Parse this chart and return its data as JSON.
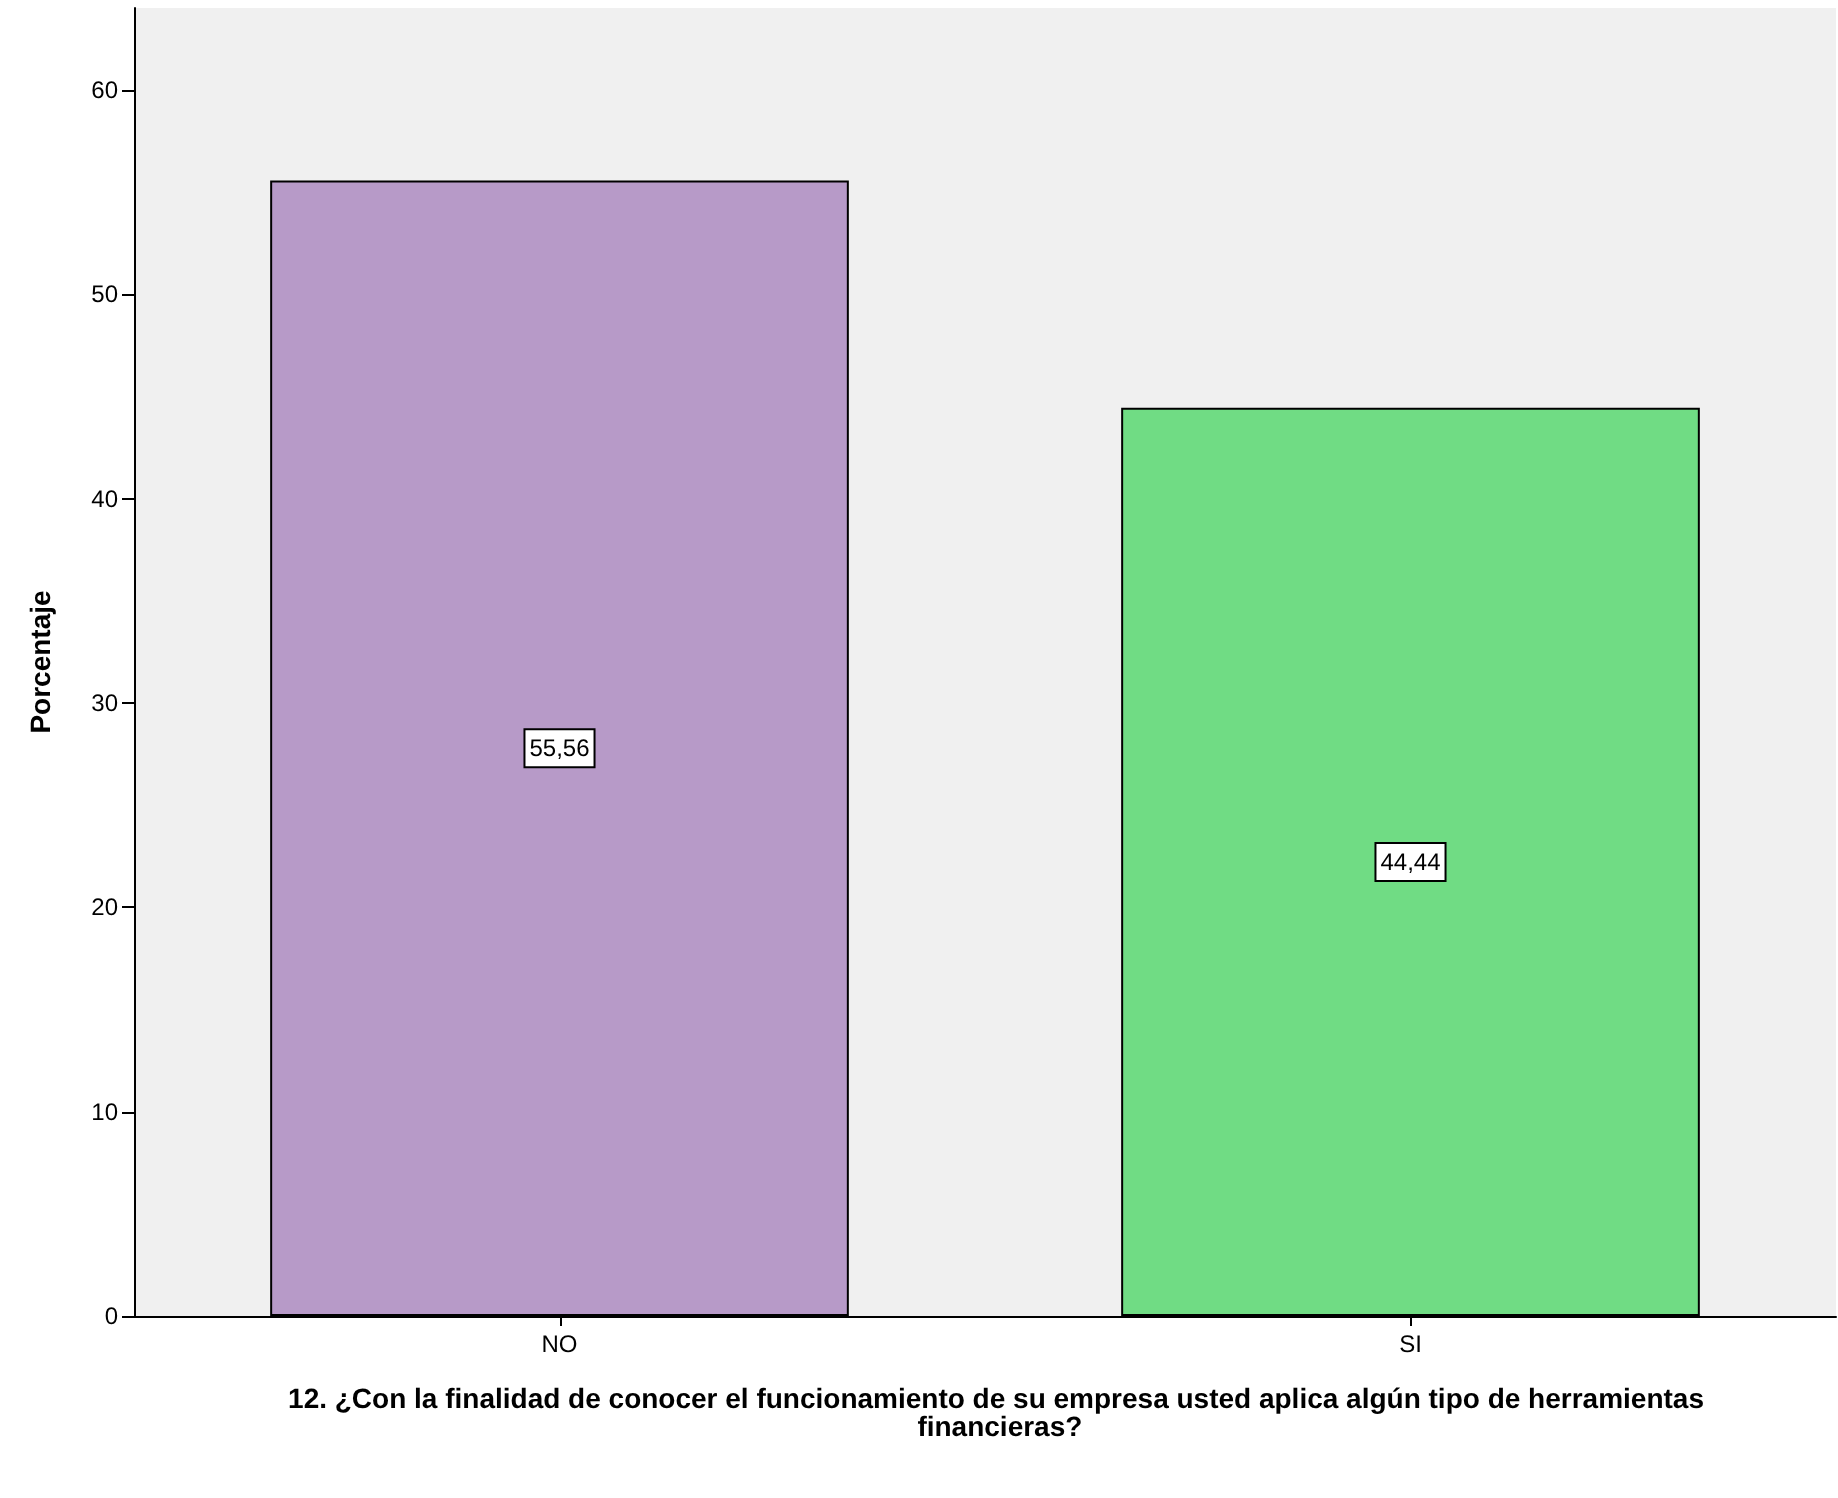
{
  "chart_data": {
    "type": "bar",
    "xlabel": "12. ¿Con la finalidad de conocer el funcionamiento de su empresa usted aplica algún tipo de herramientas financieras?",
    "ylabel": "Porcentaje",
    "categories": [
      "NO",
      "SI"
    ],
    "values": [
      55.56,
      44.44
    ],
    "value_labels": [
      "55,56",
      "44,44"
    ],
    "colors": [
      "#b79ac8",
      "#70dc84"
    ],
    "ylim": [
      0,
      64
    ],
    "yticks": [
      0,
      10,
      20,
      30,
      40,
      50,
      60
    ],
    "grid": false
  }
}
